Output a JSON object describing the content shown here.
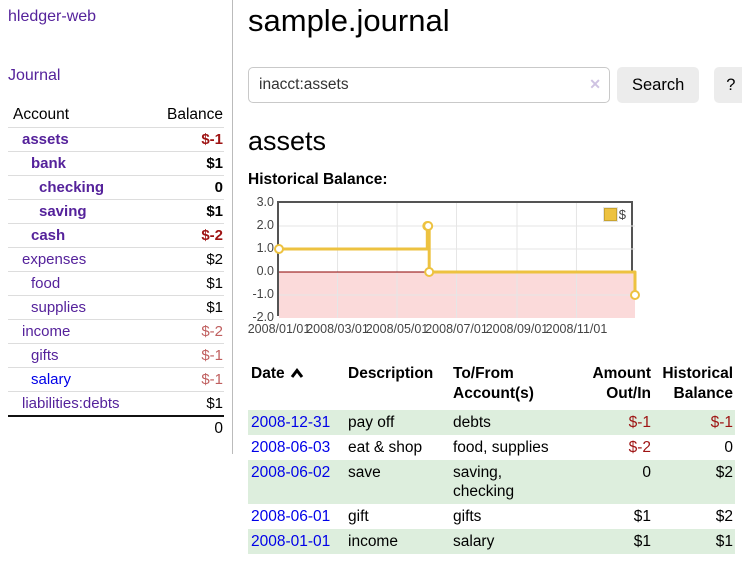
{
  "app": {
    "brand": "hledger-web",
    "nav_journal": "Journal"
  },
  "accounts_panel": {
    "col_account": "Account",
    "col_balance": "Balance",
    "rows": [
      {
        "name": "assets",
        "balance": "$-1"
      },
      {
        "name": "bank",
        "balance": "$1"
      },
      {
        "name": "checking",
        "balance": "0"
      },
      {
        "name": "saving",
        "balance": "$1"
      },
      {
        "name": "cash",
        "balance": "$-2"
      },
      {
        "name": "expenses",
        "balance": "$2"
      },
      {
        "name": "food",
        "balance": "$1"
      },
      {
        "name": "supplies",
        "balance": "$1"
      },
      {
        "name": "income",
        "balance": "$-2"
      },
      {
        "name": "gifts",
        "balance": "$-1"
      },
      {
        "name": "salary",
        "balance": "$-1"
      },
      {
        "name": "liabilities:debts",
        "balance": "$1"
      }
    ],
    "total": "0"
  },
  "main": {
    "title": "sample.journal",
    "search": {
      "query": "inacct:assets",
      "clear_icon": "✕",
      "search_button": "Search",
      "help_button": "?"
    },
    "account_heading": "assets",
    "chart_label": "Historical Balance:"
  },
  "chart_data": {
    "type": "line",
    "title": "Historical Balance",
    "step": true,
    "series": [
      {
        "name": "$",
        "color": "#edc240",
        "points": [
          [
            "2008-01-01",
            1
          ],
          [
            "2008-06-01",
            2
          ],
          [
            "2008-06-02",
            2
          ],
          [
            "2008-06-03",
            0
          ],
          [
            "2008-12-31",
            -1
          ]
        ]
      }
    ],
    "x_start": "2008-01-01",
    "x_end": "2008-12-31",
    "x_tick_dates": [
      "2008-01-01",
      "2008-03-01",
      "2008-05-01",
      "2008-07-01",
      "2008-09-01",
      "2008-11-01"
    ],
    "x_tick_labels": [
      "2008/01/01",
      "2008/03/01",
      "2008/05/01",
      "2008/07/01",
      "2008/09/01",
      "2008/11/01"
    ],
    "y_ticks": [
      3.0,
      2.0,
      1.0,
      0.0,
      -1.0,
      -2.0
    ],
    "y_tick_labels": [
      "3.0",
      "2.0",
      "1.0",
      "0.0",
      "-1.0",
      "-2.0"
    ],
    "ylim": [
      -2,
      3
    ],
    "grid": true,
    "legend": {
      "label": "$",
      "position": "top-right"
    },
    "zero_line_color": "#8b0000",
    "negative_region_color": "#fbdada",
    "grid_line_color": "#e6e6e6",
    "border_color": "#545454"
  },
  "register": {
    "headers": {
      "date": "Date",
      "description": "Description",
      "accounts": "To/From Account(s)",
      "amount": "Amount Out/In",
      "balance": "Historical Balance"
    },
    "rows": [
      {
        "date": "2008-12-31",
        "description": "pay off",
        "accounts": "debts",
        "amount": "$-1",
        "balance": "$-1"
      },
      {
        "date": "2008-06-03",
        "description": "eat & shop",
        "accounts": "food, supplies",
        "amount": "$-2",
        "balance": "0"
      },
      {
        "date": "2008-06-02",
        "description": "save",
        "accounts": "saving, checking",
        "amount": "0",
        "balance": "$2"
      },
      {
        "date": "2008-06-01",
        "description": "gift",
        "accounts": "gifts",
        "amount": "$1",
        "balance": "$2"
      },
      {
        "date": "2008-01-01",
        "description": "income",
        "accounts": "salary",
        "amount": "$1",
        "balance": "$1"
      }
    ]
  }
}
